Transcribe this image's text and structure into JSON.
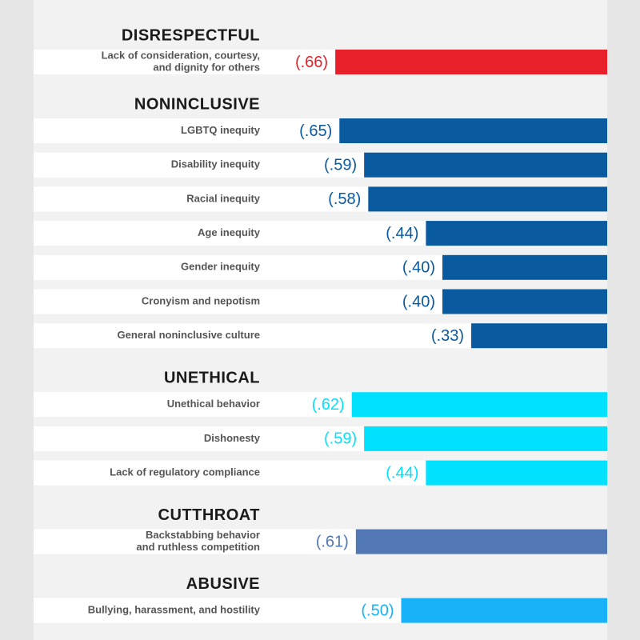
{
  "chart_data": {
    "type": "bar",
    "groups": [
      {
        "title": "DISRESPECTFUL",
        "color": "#e8202a",
        "items": [
          {
            "label_lines": [
              "Lack of consideration, courtesy,",
              "and dignity for others"
            ],
            "value": 0.66,
            "value_label": "(.66)"
          }
        ]
      },
      {
        "title": "NONINCLUSIVE",
        "color": "#0a5aa0",
        "items": [
          {
            "label_lines": [
              "LGBTQ inequity"
            ],
            "value": 0.65,
            "value_label": "(.65)"
          },
          {
            "label_lines": [
              "Disability inequity"
            ],
            "value": 0.59,
            "value_label": "(.59)"
          },
          {
            "label_lines": [
              "Racial inequity"
            ],
            "value": 0.58,
            "value_label": "(.58)"
          },
          {
            "label_lines": [
              "Age inequity"
            ],
            "value": 0.44,
            "value_label": "(.44)"
          },
          {
            "label_lines": [
              "Gender inequity"
            ],
            "value": 0.4,
            "value_label": "(.40)"
          },
          {
            "label_lines": [
              "Cronyism and nepotism"
            ],
            "value": 0.4,
            "value_label": "(.40)"
          },
          {
            "label_lines": [
              "General noninclusive culture"
            ],
            "value": 0.33,
            "value_label": "(.33)"
          }
        ]
      },
      {
        "title": "UNETHICAL",
        "color": "#00e0ff",
        "items": [
          {
            "label_lines": [
              "Unethical behavior"
            ],
            "value": 0.62,
            "value_label": "(.62)"
          },
          {
            "label_lines": [
              "Dishonesty"
            ],
            "value": 0.59,
            "value_label": "(.59)"
          },
          {
            "label_lines": [
              "Lack of regulatory compliance"
            ],
            "value": 0.44,
            "value_label": "(.44)"
          }
        ]
      },
      {
        "title": "CUTTHROAT",
        "color": "#5177b4",
        "items": [
          {
            "label_lines": [
              "Backstabbing behavior",
              "and ruthless competition"
            ],
            "value": 0.61,
            "value_label": "(.61)"
          }
        ]
      },
      {
        "title": "ABUSIVE",
        "color": "#18b2f8",
        "items": [
          {
            "label_lines": [
              "Bullying, harassment, and hostility"
            ],
            "value": 0.5,
            "value_label": "(.50)"
          }
        ]
      }
    ]
  }
}
